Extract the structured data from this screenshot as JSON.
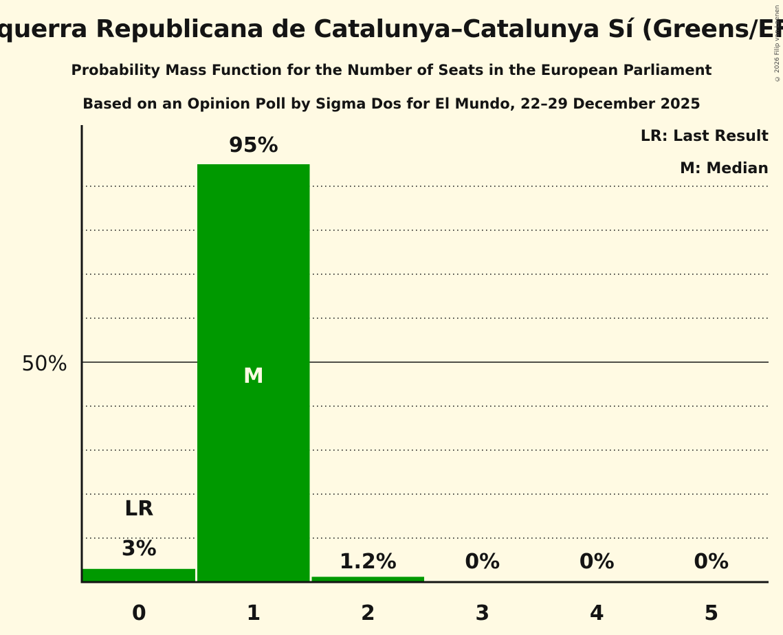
{
  "header": {
    "title": "Esquerra Republicana de Catalunya–Catalunya Sí (Greens/EFA)",
    "subtitle": "Probability Mass Function for the Number of Seats in the European Parliament",
    "subtitle2": "Based on an Opinion Poll by Sigma Dos for El Mundo, 22–29 December 2025",
    "copyright": "© 2026 Filip van Laenen"
  },
  "legend": {
    "lr": "LR: Last Result",
    "m": "M: Median"
  },
  "colors": {
    "bar": "#009900",
    "background": "#fffae3",
    "text": "#141414",
    "median_text": "#fffae3"
  },
  "chart_data": {
    "type": "bar",
    "title": "Esquerra Republicana de Catalunya–Catalunya Sí (Greens/EFA)",
    "subtitle": "Probability Mass Function for the Number of Seats in the European Parliament",
    "xlabel": "",
    "ylabel": "",
    "categories": [
      "0",
      "1",
      "2",
      "3",
      "4",
      "5"
    ],
    "values": [
      3,
      95,
      1.2,
      0,
      0,
      0
    ],
    "value_labels": [
      "3%",
      "95%",
      "1.2%",
      "0%",
      "0%",
      "0%"
    ],
    "ylim": [
      0,
      100
    ],
    "yticks": [
      {
        "value": 50,
        "label": "50%"
      }
    ],
    "gridlines": [
      10,
      20,
      30,
      40,
      60,
      70,
      80,
      90
    ],
    "grid": true,
    "annotations": [
      {
        "category": "0",
        "label": "LR",
        "meaning": "Last Result"
      },
      {
        "category": "1",
        "label": "M",
        "meaning": "Median"
      }
    ],
    "legend_position": "top-right"
  }
}
